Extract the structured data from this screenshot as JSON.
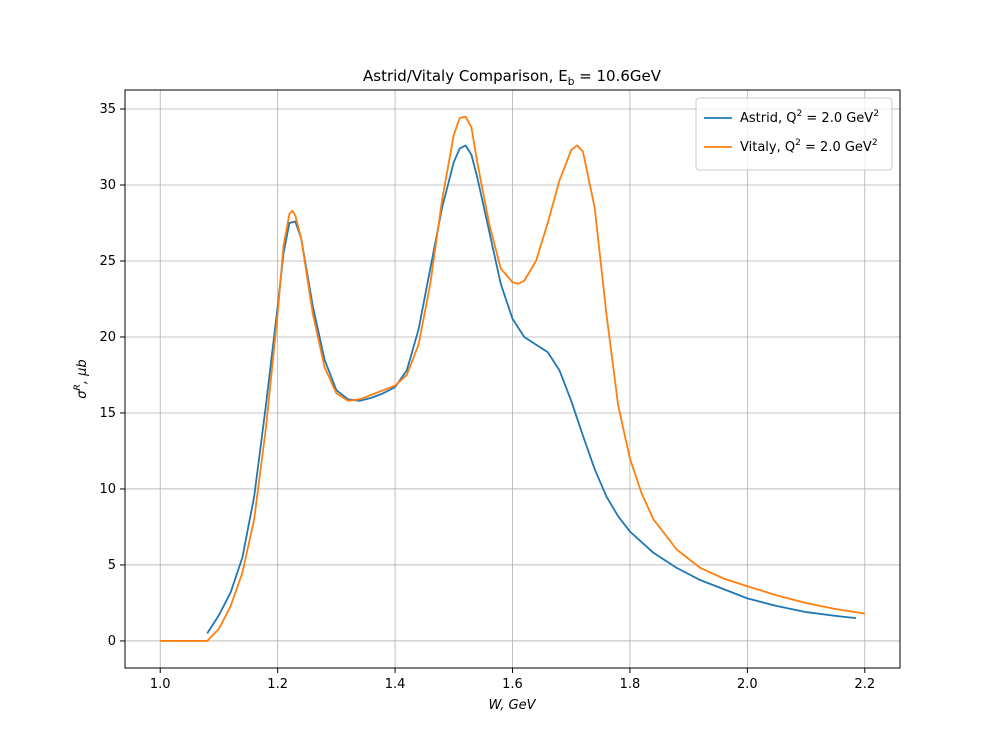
{
  "chart_data": {
    "type": "line",
    "title": "Astrid/Vitaly Comparison, E_b = 10.6GeV",
    "xlabel": "W, GeV",
    "ylabel": "σ^R, μb",
    "xlim": [
      0.94,
      2.26
    ],
    "ylim": [
      -1.78,
      36.25
    ],
    "xticks": [
      {
        "value": 1,
        "label": "1.0"
      },
      1.2,
      1.4,
      1.6,
      1.8,
      {
        "value": 2,
        "label": "2.0"
      },
      2.2
    ],
    "yticks": [
      0,
      5,
      10,
      15,
      20,
      25,
      30,
      35
    ],
    "grid": true,
    "legend": "upper right",
    "series": [
      {
        "name": "Astrid, Q^2 = 2.0 GeV^2",
        "color": "#1f77b4",
        "x": [
          1.08,
          1.1,
          1.12,
          1.14,
          1.16,
          1.18,
          1.2,
          1.21,
          1.22,
          1.23,
          1.24,
          1.26,
          1.28,
          1.3,
          1.32,
          1.34,
          1.36,
          1.38,
          1.4,
          1.42,
          1.44,
          1.46,
          1.48,
          1.5,
          1.51,
          1.52,
          1.53,
          1.54,
          1.56,
          1.58,
          1.6,
          1.62,
          1.64,
          1.66,
          1.68,
          1.7,
          1.72,
          1.74,
          1.76,
          1.78,
          1.8,
          1.84,
          1.88,
          1.92,
          1.96,
          2.0,
          2.05,
          2.1,
          2.15,
          2.185
        ],
        "values": [
          0.5,
          1.7,
          3.2,
          5.5,
          9.5,
          15.5,
          22,
          25.5,
          27.5,
          27.6,
          26.5,
          22,
          18.5,
          16.5,
          15.9,
          15.8,
          16.0,
          16.3,
          16.7,
          17.8,
          20.5,
          24.5,
          28.5,
          31.5,
          32.4,
          32.6,
          32,
          30.5,
          27,
          23.5,
          21.2,
          20,
          19.5,
          19,
          17.8,
          15.8,
          13.5,
          11.3,
          9.5,
          8.2,
          7.2,
          5.8,
          4.8,
          4.0,
          3.4,
          2.8,
          2.3,
          1.9,
          1.65,
          1.5
        ]
      },
      {
        "name": "Vitaly, Q^2 = 2.0 GeV^2",
        "color": "#ff7f0e",
        "x": [
          1.0,
          1.04,
          1.08,
          1.1,
          1.12,
          1.14,
          1.16,
          1.18,
          1.2,
          1.21,
          1.22,
          1.225,
          1.23,
          1.24,
          1.26,
          1.28,
          1.3,
          1.32,
          1.34,
          1.36,
          1.38,
          1.4,
          1.42,
          1.44,
          1.46,
          1.48,
          1.5,
          1.51,
          1.52,
          1.53,
          1.54,
          1.56,
          1.58,
          1.6,
          1.61,
          1.62,
          1.64,
          1.66,
          1.68,
          1.7,
          1.71,
          1.72,
          1.74,
          1.76,
          1.78,
          1.8,
          1.82,
          1.84,
          1.88,
          1.92,
          1.96,
          2.0,
          2.05,
          2.1,
          2.15,
          2.2
        ],
        "values": [
          0,
          0,
          0,
          0.8,
          2.3,
          4.5,
          8,
          14,
          21.5,
          26,
          28.1,
          28.3,
          28,
          26.5,
          21.5,
          18,
          16.3,
          15.8,
          15.9,
          16.2,
          16.5,
          16.8,
          17.5,
          19.5,
          23.5,
          29,
          33.3,
          34.4,
          34.5,
          33.8,
          31.5,
          27.5,
          24.5,
          23.6,
          23.5,
          23.7,
          25,
          27.5,
          30.3,
          32.3,
          32.6,
          32.2,
          28.5,
          21.5,
          15.5,
          12,
          9.7,
          8,
          6,
          4.8,
          4.1,
          3.6,
          3.0,
          2.5,
          2.1,
          1.8
        ]
      }
    ]
  }
}
